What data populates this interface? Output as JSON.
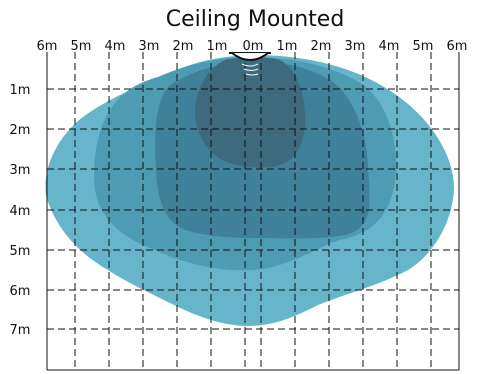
{
  "title": "Ceiling Mounted",
  "x_ticks": [
    "6m",
    "5m",
    "4m",
    "3m",
    "2m",
    "1m",
    "0m",
    "1m",
    "2m",
    "3m",
    "4m",
    "5m",
    "6m"
  ],
  "y_ticks": [
    "1m",
    "2m",
    "3m",
    "4m",
    "5m",
    "6m",
    "7m"
  ],
  "colors": {
    "zone_outer": "#67b5cb",
    "zone_middle": "#4e9bb4",
    "zone_inner": "#3f8199",
    "zone_core": "#3d6a7c",
    "grid": "#111111",
    "sensor": "#111111"
  }
}
